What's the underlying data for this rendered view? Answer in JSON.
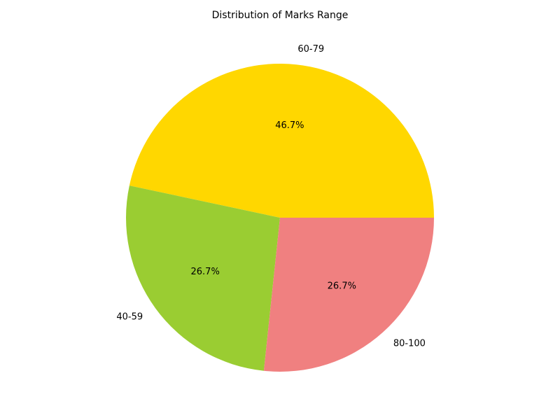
{
  "chart_data": {
    "type": "pie",
    "title": "Distribution of Marks Range",
    "slices": [
      {
        "label": "60-79",
        "value": 46.7,
        "pct_label": "46.7%",
        "color": "#FFD700"
      },
      {
        "label": "40-59",
        "value": 26.7,
        "pct_label": "26.7%",
        "color": "#9ACD32"
      },
      {
        "label": "80-100",
        "value": 26.7,
        "pct_label": "26.7%",
        "color": "#F08080"
      }
    ]
  }
}
